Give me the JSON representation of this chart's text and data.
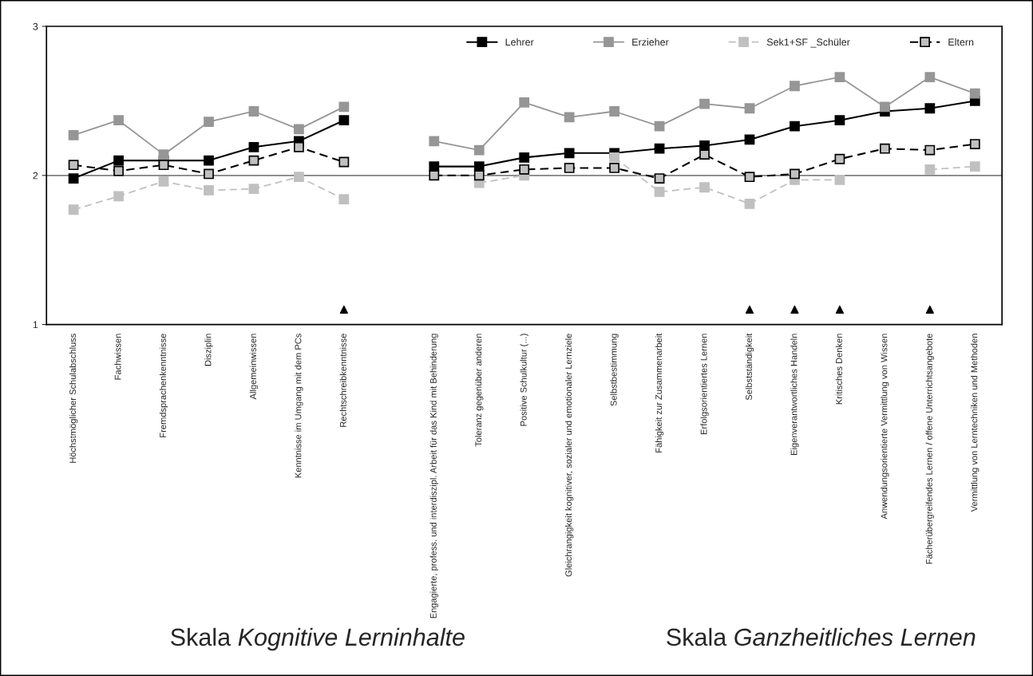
{
  "chart_data": {
    "type": "line",
    "categories": [
      "Höchstmöglicher Schulabschluss",
      "Fachwissen",
      "Fremdsprachenkenntnisse",
      "Disziplin",
      "Allgemeinwissen",
      "Kenntnisse im Umgang mit dem PCs",
      "Rechtschreibkenntnisse",
      null,
      "Engagierte, profess. und interdiszipl. Arbeit für das Kind mit Behinderung",
      "Toleranz gegenüber anderen",
      "Positive Schulkultur (...)",
      "Gleichrangigkeit kognitiver, sozialer und emotionaler Lernziele",
      "Selbstbestimmung",
      "Fähigkeit zur Zusammenarbeit",
      "Erfolgsorientiertes Lernen",
      "Selbstständigkeit",
      "Eigenverantwortliches Handeln",
      "Kritisches Denken",
      "Anwendungsorientierte Vermittlung von Wissen",
      "Fächerübergreifendes Lernen / offene Unterrichtsangebote",
      "Vermittlung von Lerntechniken und Methoden"
    ],
    "series": [
      {
        "name": "Lehrer",
        "color": "#000000",
        "line_style": "solid",
        "marker": "square",
        "values": [
          1.98,
          2.1,
          2.1,
          2.1,
          2.19,
          2.23,
          2.37,
          null,
          2.06,
          2.06,
          2.12,
          2.15,
          2.15,
          2.18,
          2.2,
          2.24,
          2.33,
          2.37,
          2.43,
          2.45,
          2.5
        ]
      },
      {
        "name": "Erzieher",
        "color": "#969696",
        "line_style": "solid",
        "marker": "square",
        "values": [
          2.27,
          2.37,
          2.14,
          2.36,
          2.43,
          2.31,
          2.46,
          null,
          2.23,
          2.17,
          2.49,
          2.39,
          2.43,
          2.33,
          2.48,
          2.45,
          2.6,
          2.66,
          2.46,
          2.66,
          2.55
        ]
      },
      {
        "name": "Sek1+SF _Schüler",
        "color": "#c0c0c0",
        "line_style": "dashed",
        "marker": "square",
        "values": [
          1.77,
          1.86,
          1.96,
          1.9,
          1.91,
          1.99,
          1.84,
          null,
          null,
          1.95,
          2.0,
          null,
          2.12,
          1.89,
          1.92,
          1.81,
          1.97,
          1.97,
          null,
          2.04,
          2.06
        ]
      },
      {
        "name": "Eltern",
        "color": "#000000",
        "line_style": "dashed",
        "marker": "square",
        "values": [
          2.07,
          2.03,
          2.07,
          2.01,
          2.1,
          2.19,
          2.09,
          null,
          2.0,
          2.0,
          2.04,
          2.05,
          2.05,
          1.98,
          2.14,
          1.99,
          2.01,
          2.11,
          2.18,
          2.17,
          2.21
        ]
      },
      {
        "type": "scatter",
        "color": "#000000",
        "marker": "triangle",
        "values": [
          null,
          null,
          null,
          null,
          null,
          null,
          1.1,
          null,
          null,
          null,
          null,
          null,
          null,
          null,
          null,
          1.1,
          1.1,
          1.1,
          null,
          1.1,
          null
        ]
      }
    ],
    "ylim": [
      1,
      3
    ],
    "yticks": [
      1,
      2,
      3
    ],
    "grid": false,
    "legend": "top right",
    "ref_lines": [
      {
        "axis": "y",
        "value": 2,
        "color": "#808080"
      }
    ],
    "annotations": [
      "Skala Kognitive Lerninhalte",
      "Skala Ganzheitliches Lernen"
    ]
  }
}
